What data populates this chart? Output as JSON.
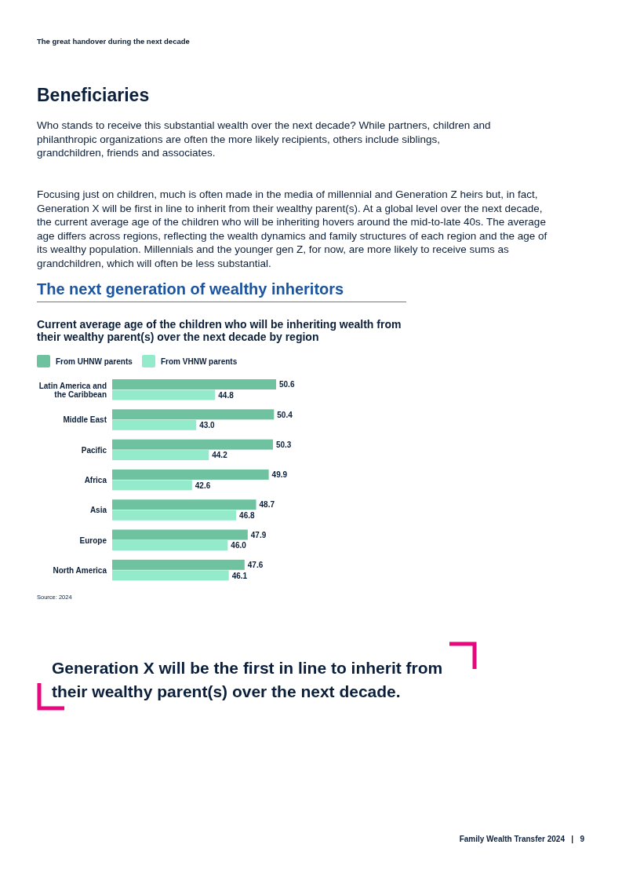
{
  "chart_data": {
    "type": "bar",
    "orientation": "horizontal",
    "title": "The next generation of wealthy inheritors",
    "subtitle": "Current average age of the children who will be inheriting wealth from their wealthy parent(s) over the next decade by region",
    "categories": [
      "Latin America and the Caribbean",
      "Middle East",
      "Pacific",
      "Africa",
      "Asia",
      "Europe",
      "North America"
    ],
    "series": [
      {
        "name": "From UHNW parents",
        "color": "#6fc2a0",
        "values": [
          50.6,
          50.4,
          50.3,
          49.9,
          48.7,
          47.9,
          47.6
        ],
        "value_labels": [
          "50.6",
          "50.4",
          "50.3",
          "49.9",
          "48.7",
          "47.9",
          "47.6"
        ]
      },
      {
        "name": "From VHNW parents",
        "color": "#94ebcb",
        "values": [
          44.8,
          43.0,
          44.2,
          42.6,
          46.8,
          46.0,
          46.1
        ],
        "value_labels": [
          "44.8",
          "43.0",
          "44.2",
          "42.6",
          "46.8",
          "46.0",
          "46.1"
        ]
      }
    ],
    "xlim": [
      35,
      50.6
    ],
    "legend": "top left",
    "annotations": [
      "The great handover during the next decade",
      "Beneficiaries",
      "Who stands to receive this substantial wealth over the next decade? While partners, children and philanthropic organizations are often the more likely recipients, others include siblings, grandchildren, friends and associates.",
      "Focusing just on children, much is often made in the media of millennial and Generation Z heirs but, in fact, Generation X will be first in line to inherit from their wealthy parent(s). At a global level over the next decade, the current average age of the children who will be inheriting hovers around the mid-to-late 40s. The average age differs across regions, reflecting the wealth dynamics and family structures of each region and the age of its wealthy population. Millennials and the younger gen Z, for now, are more likely to receive sums as grandchildren, which will often be less substantial.",
      "Source: 2024",
      "Generation X will be the first in line to inherit from their wealthy parent(s) over the next decade.",
      "Family Wealth Transfer 2024   |   9"
    ]
  }
}
